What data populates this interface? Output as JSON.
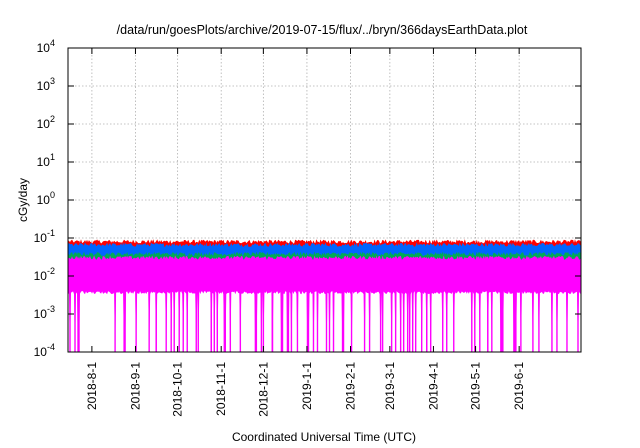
{
  "chart_data": {
    "type": "area",
    "title": "/data/run/goesPlots/archive/2019-07-15/flux/../bryn/366daysEarthData.plot",
    "xlabel": "Coordinated Universal Time (UTC)",
    "ylabel": "cGy/day",
    "yscale": "log",
    "ylim": [
      0.0001,
      10000
    ],
    "xlim": [
      "2018-07-15",
      "2019-07-15"
    ],
    "grid": true,
    "x_ticks": [
      "2018-8-1",
      "2018-9-1",
      "2018-10-1",
      "2018-11-1",
      "2018-12-1",
      "2019-1-1",
      "2019-2-1",
      "2019-3-1",
      "2019-4-1",
      "2019-5-1",
      "2019-6-1"
    ],
    "y_ticks": [
      {
        "value": 0.0001,
        "base": "10",
        "exp": "-4"
      },
      {
        "value": 0.001,
        "base": "10",
        "exp": "-3"
      },
      {
        "value": 0.01,
        "base": "10",
        "exp": "-2"
      },
      {
        "value": 0.1,
        "base": "10",
        "exp": "-1"
      },
      {
        "value": 1,
        "base": "10",
        "exp": "0"
      },
      {
        "value": 10,
        "base": "10",
        "exp": "1"
      },
      {
        "value": 100,
        "base": "10",
        "exp": "2"
      },
      {
        "value": 1000,
        "base": "10",
        "exp": "3"
      },
      {
        "value": 10000,
        "base": "10",
        "exp": "4"
      }
    ],
    "series": [
      {
        "color": "#ff0000",
        "typical_range": [
          0.004,
          0.085
        ]
      },
      {
        "color": "#0066ff",
        "typical_range": [
          0.004,
          0.07
        ]
      },
      {
        "color": "#00aa55",
        "typical_range": [
          0.004,
          0.04
        ]
      },
      {
        "color": "#ff00ff",
        "typical_range": [
          0.004,
          0.032
        ]
      }
    ]
  }
}
